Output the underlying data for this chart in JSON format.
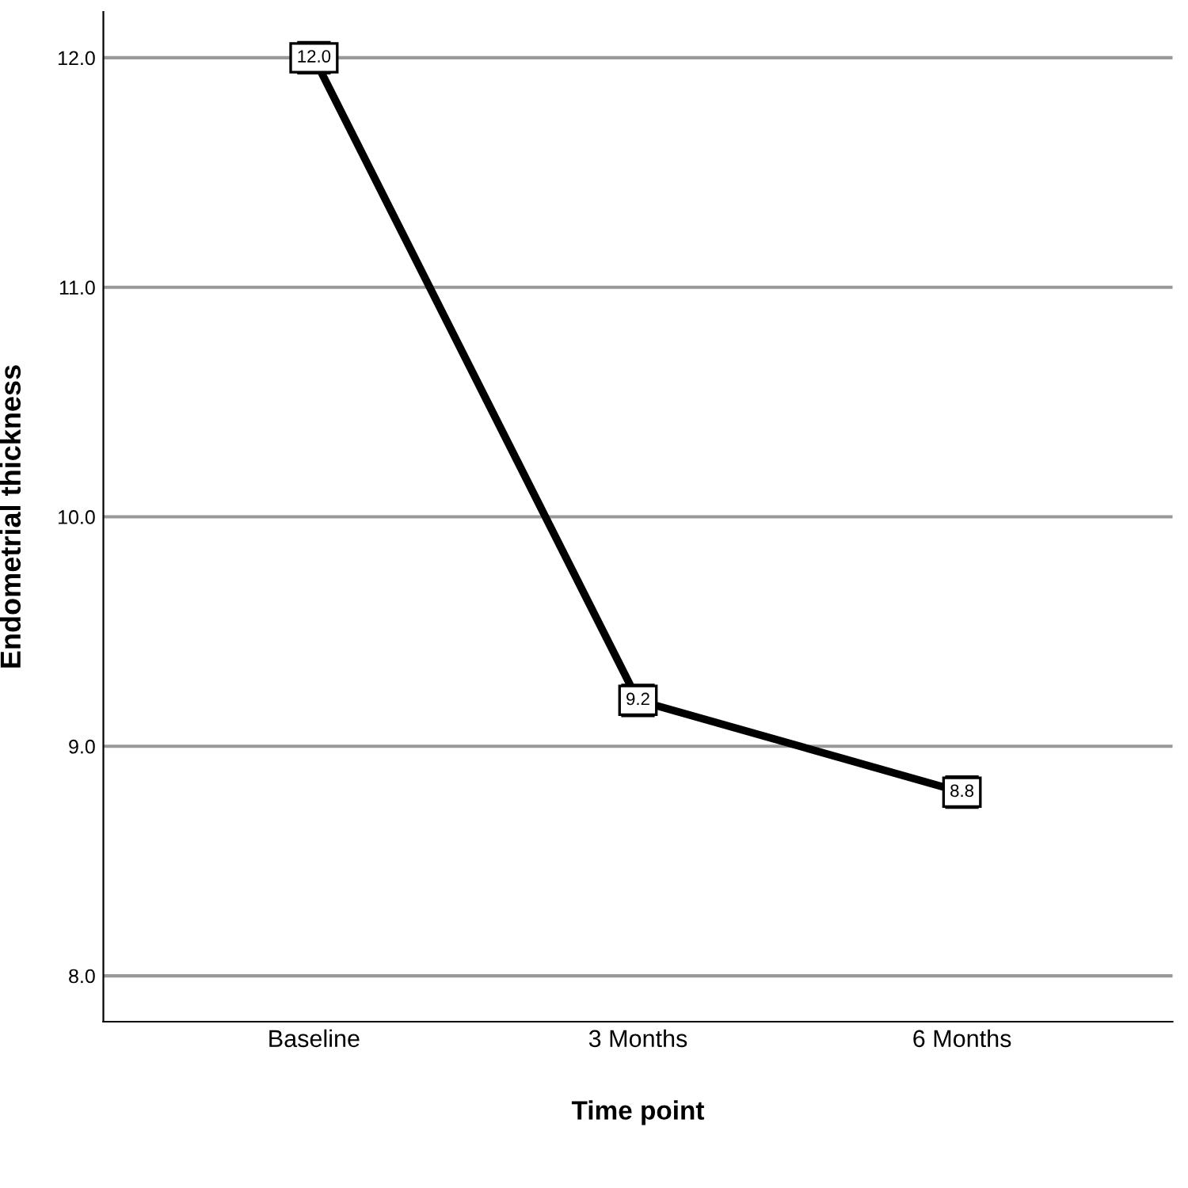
{
  "chart_data": {
    "type": "line",
    "xlabel": "Time point",
    "ylabel": "Endometrial thickness",
    "categories": [
      "Baseline",
      "3 Months",
      "6 Months"
    ],
    "series": [
      {
        "color": "#000000",
        "values": [
          12.0,
          9.2,
          8.8
        ],
        "value_labels": [
          "12.0",
          "9.2",
          "8.8"
        ]
      }
    ],
    "ylim": [
      7.8,
      12.2
    ],
    "yticks": [
      {
        "value": 8,
        "label": "8.0"
      },
      {
        "value": 9,
        "label": "9.0"
      },
      {
        "value": 10,
        "label": "10.0"
      },
      {
        "value": 11,
        "label": "11.0"
      },
      {
        "value": 12,
        "label": "12.0"
      }
    ],
    "grid": "y",
    "marker": "square",
    "line_style": "solid"
  }
}
